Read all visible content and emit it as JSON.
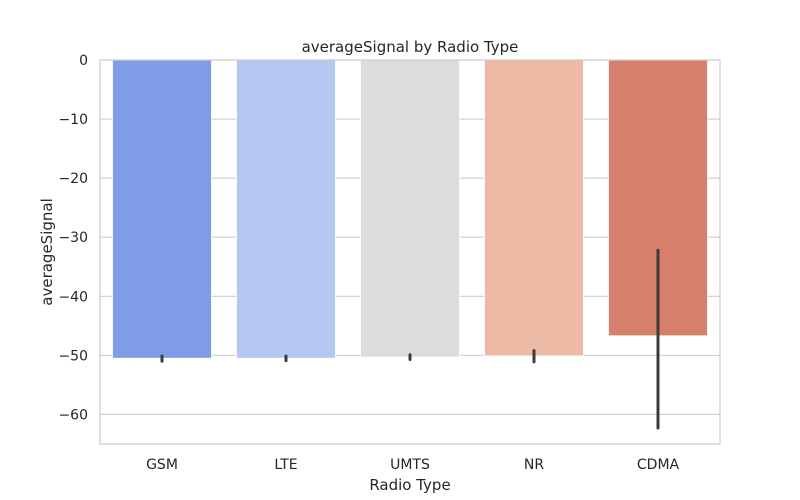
{
  "chart_data": {
    "type": "bar",
    "title": "averageSignal by Radio Type",
    "xlabel": "Radio Type",
    "ylabel": "averageSignal",
    "categories": [
      "GSM",
      "LTE",
      "UMTS",
      "NR",
      "CDMA"
    ],
    "values": [
      -50.5,
      -50.5,
      -50.3,
      -50.1,
      -46.7
    ],
    "error_low": [
      -51.0,
      -50.9,
      -50.7,
      -51.1,
      -62.3
    ],
    "error_high": [
      -50.1,
      -50.1,
      -49.9,
      -49.2,
      -32.2
    ],
    "colors": [
      "#7f9ce6",
      "#b5c8f3",
      "#dcdcdc",
      "#edbba5",
      "#d6806c"
    ],
    "error_color": "#3b3b3b",
    "ylim": [
      -65,
      0
    ],
    "yticks": [
      0,
      -10,
      -20,
      -30,
      -40,
      -50,
      -60
    ],
    "grid": true,
    "legend": "none"
  }
}
